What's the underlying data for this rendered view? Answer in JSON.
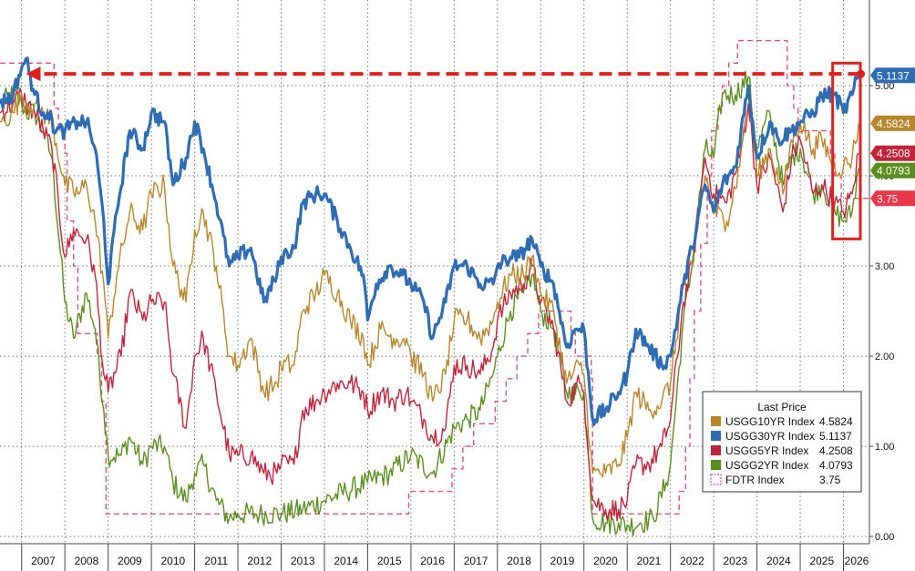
{
  "chart_data": {
    "type": "line",
    "title": "",
    "xlabel": "",
    "ylabel": "",
    "xlim": [
      2006.5,
      2026.6
    ],
    "ylim": [
      -0.08,
      5.95
    ],
    "grid": true,
    "y_axis_side": "right",
    "x_ticks": [
      "2007",
      "2008",
      "2009",
      "2010",
      "2011",
      "2012",
      "2013",
      "2014",
      "2015",
      "2016",
      "2017",
      "2018",
      "2019",
      "2020",
      "2021",
      "2022",
      "2023",
      "2024",
      "2025",
      "2026"
    ],
    "y_ticks": [
      "0.00",
      "1.00",
      "2.00",
      "3.00",
      "4.00",
      "5.00"
    ],
    "legend": {
      "title": "Last Price",
      "placement": "bottom-right",
      "entries": [
        {
          "name": "USGG10YR Index",
          "value": "4.5824"
        },
        {
          "name": "USGG30YR Index",
          "value": "5.1137"
        },
        {
          "name": "USGG5YR Index",
          "value": "4.2508"
        },
        {
          "name": "USGG2YR Index",
          "value": "4.0793"
        },
        {
          "name": "FDTR Index",
          "value": "3.75"
        }
      ]
    },
    "last_price_badges": [
      {
        "label": "5.1137",
        "value": 5.1137,
        "color": "#2e6db4"
      },
      {
        "label": "4.5824",
        "value": 4.5824,
        "color": "#b8862b"
      },
      {
        "label": "4.2508",
        "value": 4.2508,
        "color": "#c0243a"
      },
      {
        "label": "4.0793",
        "value": 4.0793,
        "color": "#5a8f1f"
      },
      {
        "label": "3.75",
        "value": 3.75,
        "color": "#e8364a"
      }
    ],
    "annotation": {
      "type": "dashed-arrow",
      "color": "#e0201e",
      "from": {
        "x": 2026.4,
        "y": 5.13
      },
      "to": {
        "x": 2007.1,
        "y": 5.13
      },
      "highlight_box": {
        "x0": 2025.75,
        "x1": 2026.65,
        "y0": 3.3,
        "y1": 5.25
      }
    },
    "series": [
      {
        "name": "USGG30YR Index",
        "color": "#2e6db4",
        "width": 3.2,
        "style": "line",
        "x": [
          2006.5,
          2006.8,
          2007.0,
          2007.1,
          2007.3,
          2007.5,
          2007.6,
          2007.8,
          2008.0,
          2008.3,
          2008.5,
          2008.7,
          2008.9,
          2009.0,
          2009.2,
          2009.5,
          2009.8,
          2010.0,
          2010.3,
          2010.5,
          2010.8,
          2011.0,
          2011.2,
          2011.5,
          2011.8,
          2012.0,
          2012.3,
          2012.6,
          2012.9,
          2013.0,
          2013.3,
          2013.5,
          2013.8,
          2014.0,
          2014.3,
          2014.6,
          2014.9,
          2015.0,
          2015.2,
          2015.5,
          2015.8,
          2016.0,
          2016.3,
          2016.5,
          2016.8,
          2017.0,
          2017.3,
          2017.6,
          2017.9,
          2018.0,
          2018.3,
          2018.5,
          2018.8,
          2019.0,
          2019.3,
          2019.6,
          2019.8,
          2020.0,
          2020.2,
          2020.5,
          2020.8,
          2021.0,
          2021.2,
          2021.5,
          2021.8,
          2022.0,
          2022.3,
          2022.5,
          2022.8,
          2023.0,
          2023.2,
          2023.5,
          2023.8,
          2024.0,
          2024.3,
          2024.5,
          2024.8,
          2025.0,
          2025.3,
          2025.5,
          2025.8,
          2026.0,
          2026.2,
          2026.35
        ],
        "y": [
          4.8,
          4.9,
          5.2,
          5.3,
          4.9,
          4.7,
          4.7,
          4.5,
          4.5,
          4.6,
          4.6,
          4.3,
          3.5,
          2.8,
          3.6,
          4.5,
          4.3,
          4.7,
          4.6,
          3.9,
          4.2,
          4.6,
          4.3,
          3.7,
          3.0,
          3.1,
          3.2,
          2.6,
          2.9,
          3.1,
          3.2,
          3.7,
          3.8,
          3.8,
          3.5,
          3.2,
          2.9,
          2.4,
          2.8,
          3.0,
          2.9,
          2.8,
          2.6,
          2.2,
          2.6,
          3.0,
          3.0,
          2.8,
          2.8,
          3.0,
          3.1,
          3.1,
          3.3,
          3.0,
          2.8,
          2.1,
          2.3,
          2.3,
          1.3,
          1.4,
          1.6,
          1.8,
          2.3,
          2.1,
          1.9,
          2.0,
          2.8,
          3.2,
          3.9,
          3.6,
          3.9,
          4.1,
          5.0,
          4.2,
          4.6,
          4.4,
          4.5,
          4.6,
          4.7,
          4.9,
          4.9,
          4.7,
          4.9,
          5.11
        ]
      },
      {
        "name": "USGG10YR Index",
        "color": "#b8862b",
        "width": 1.4,
        "style": "line",
        "x": [
          2006.5,
          2006.8,
          2007.0,
          2007.1,
          2007.3,
          2007.5,
          2007.7,
          2008.0,
          2008.3,
          2008.5,
          2008.7,
          2008.9,
          2009.0,
          2009.2,
          2009.5,
          2009.8,
          2010.0,
          2010.3,
          2010.5,
          2010.8,
          2011.0,
          2011.2,
          2011.5,
          2011.8,
          2012.0,
          2012.3,
          2012.6,
          2012.9,
          2013.0,
          2013.3,
          2013.5,
          2013.8,
          2014.0,
          2014.3,
          2014.6,
          2014.9,
          2015.0,
          2015.3,
          2015.6,
          2015.9,
          2016.0,
          2016.3,
          2016.5,
          2016.8,
          2017.0,
          2017.3,
          2017.6,
          2017.9,
          2018.0,
          2018.3,
          2018.6,
          2018.8,
          2019.0,
          2019.3,
          2019.6,
          2019.9,
          2020.0,
          2020.2,
          2020.5,
          2020.8,
          2021.0,
          2021.2,
          2021.5,
          2021.8,
          2022.0,
          2022.3,
          2022.5,
          2022.8,
          2023.0,
          2023.3,
          2023.6,
          2023.8,
          2024.0,
          2024.3,
          2024.6,
          2024.8,
          2025.0,
          2025.3,
          2025.5,
          2025.8,
          2026.0,
          2026.2,
          2026.35
        ],
        "y": [
          4.6,
          4.7,
          4.9,
          4.8,
          4.8,
          4.7,
          4.6,
          3.9,
          3.8,
          3.9,
          3.5,
          2.8,
          2.2,
          2.9,
          3.6,
          3.4,
          3.8,
          3.9,
          3.0,
          2.6,
          3.4,
          3.6,
          3.0,
          2.0,
          1.9,
          2.2,
          1.6,
          1.7,
          1.9,
          1.9,
          2.5,
          2.7,
          2.9,
          2.7,
          2.4,
          2.2,
          1.9,
          2.3,
          2.2,
          2.2,
          2.0,
          1.8,
          1.5,
          1.8,
          2.4,
          2.4,
          2.2,
          2.4,
          2.6,
          2.9,
          2.9,
          3.1,
          2.7,
          2.5,
          1.7,
          1.9,
          1.8,
          0.7,
          0.7,
          0.8,
          1.1,
          1.6,
          1.4,
          1.5,
          1.7,
          2.8,
          3.0,
          4.0,
          3.6,
          3.5,
          4.1,
          5.0,
          4.0,
          4.3,
          3.8,
          4.4,
          4.6,
          4.3,
          4.4,
          4.1,
          4.1,
          4.2,
          4.58
        ]
      },
      {
        "name": "USGG5YR Index",
        "color": "#c0243a",
        "width": 1.4,
        "style": "line",
        "x": [
          2006.5,
          2006.8,
          2007.0,
          2007.1,
          2007.3,
          2007.5,
          2007.7,
          2008.0,
          2008.2,
          2008.5,
          2008.7,
          2008.9,
          2009.0,
          2009.3,
          2009.5,
          2009.8,
          2010.0,
          2010.3,
          2010.5,
          2010.8,
          2011.0,
          2011.2,
          2011.5,
          2011.8,
          2012.0,
          2012.3,
          2012.6,
          2012.9,
          2013.0,
          2013.3,
          2013.5,
          2013.8,
          2014.0,
          2014.3,
          2014.6,
          2014.9,
          2015.0,
          2015.3,
          2015.6,
          2015.9,
          2016.0,
          2016.3,
          2016.5,
          2016.8,
          2017.0,
          2017.3,
          2017.6,
          2017.9,
          2018.0,
          2018.3,
          2018.6,
          2018.8,
          2019.0,
          2019.3,
          2019.6,
          2019.9,
          2020.0,
          2020.2,
          2020.5,
          2020.8,
          2021.0,
          2021.2,
          2021.5,
          2021.8,
          2022.0,
          2022.3,
          2022.5,
          2022.8,
          2023.0,
          2023.3,
          2023.6,
          2023.8,
          2024.0,
          2024.3,
          2024.6,
          2024.8,
          2025.0,
          2025.3,
          2025.5,
          2025.8,
          2026.0,
          2026.2,
          2026.35
        ],
        "y": [
          4.7,
          4.8,
          4.9,
          4.8,
          4.7,
          4.5,
          4.3,
          3.1,
          3.4,
          3.3,
          2.9,
          1.8,
          1.6,
          2.0,
          2.7,
          2.4,
          2.6,
          2.6,
          1.8,
          1.2,
          2.0,
          2.2,
          1.6,
          0.9,
          0.9,
          0.9,
          0.7,
          0.7,
          0.8,
          0.8,
          1.4,
          1.5,
          1.6,
          1.7,
          1.7,
          1.6,
          1.4,
          1.6,
          1.5,
          1.6,
          1.5,
          1.3,
          1.1,
          1.2,
          1.9,
          1.9,
          1.8,
          2.1,
          2.4,
          2.7,
          2.8,
          3.0,
          2.6,
          2.3,
          1.5,
          1.7,
          1.6,
          0.4,
          0.3,
          0.3,
          0.4,
          0.8,
          0.8,
          1.0,
          1.3,
          2.6,
          3.0,
          4.2,
          3.8,
          3.7,
          4.2,
          4.8,
          3.9,
          4.2,
          3.6,
          4.2,
          4.4,
          3.8,
          3.9,
          3.7,
          3.6,
          3.8,
          4.25
        ]
      },
      {
        "name": "USGG2YR Index",
        "color": "#5a8f1f",
        "width": 1.4,
        "style": "line",
        "x": [
          2006.5,
          2006.8,
          2007.0,
          2007.1,
          2007.3,
          2007.5,
          2007.7,
          2008.0,
          2008.2,
          2008.5,
          2008.7,
          2008.9,
          2009.0,
          2009.3,
          2009.5,
          2009.8,
          2010.0,
          2010.3,
          2010.5,
          2010.8,
          2011.0,
          2011.2,
          2011.5,
          2011.8,
          2012.0,
          2012.5,
          2013.0,
          2013.5,
          2014.0,
          2014.5,
          2015.0,
          2015.5,
          2016.0,
          2016.5,
          2017.0,
          2017.3,
          2017.6,
          2017.9,
          2018.0,
          2018.3,
          2018.6,
          2018.8,
          2019.0,
          2019.3,
          2019.6,
          2019.9,
          2020.0,
          2020.2,
          2020.5,
          2020.8,
          2021.0,
          2021.3,
          2021.6,
          2021.9,
          2022.0,
          2022.3,
          2022.5,
          2022.8,
          2023.0,
          2023.2,
          2023.5,
          2023.8,
          2024.0,
          2024.3,
          2024.6,
          2024.8,
          2025.0,
          2025.3,
          2025.5,
          2025.8,
          2026.0,
          2026.2,
          2026.35
        ],
        "y": [
          4.8,
          4.9,
          4.8,
          4.7,
          4.7,
          4.5,
          4.2,
          2.6,
          2.2,
          2.7,
          2.3,
          1.4,
          0.9,
          0.9,
          1.1,
          0.8,
          1.0,
          1.0,
          0.6,
          0.4,
          0.7,
          0.8,
          0.4,
          0.2,
          0.25,
          0.25,
          0.25,
          0.3,
          0.4,
          0.5,
          0.6,
          0.7,
          0.9,
          0.7,
          1.2,
          1.3,
          1.4,
          1.8,
          2.0,
          2.5,
          2.7,
          2.9,
          2.5,
          2.3,
          1.6,
          1.6,
          1.6,
          0.2,
          0.15,
          0.15,
          0.12,
          0.15,
          0.2,
          0.6,
          0.8,
          2.4,
          3.0,
          4.3,
          4.2,
          4.9,
          4.9,
          5.1,
          4.3,
          4.7,
          3.9,
          4.2,
          4.3,
          3.8,
          3.9,
          3.6,
          3.5,
          3.6,
          4.08
        ]
      },
      {
        "name": "FDTR Index",
        "color": "#d8527a",
        "width": 1.4,
        "style": "step",
        "x": [
          2006.5,
          2007.6,
          2007.75,
          2007.85,
          2008.0,
          2008.05,
          2008.2,
          2008.3,
          2008.75,
          2008.85,
          2008.95,
          2015.95,
          2016.95,
          2017.2,
          2017.45,
          2017.95,
          2018.2,
          2018.45,
          2018.7,
          2018.95,
          2019.55,
          2019.7,
          2019.8,
          2020.17,
          2020.2,
          2022.2,
          2022.35,
          2022.45,
          2022.55,
          2022.7,
          2022.85,
          2022.95,
          2023.1,
          2023.2,
          2023.35,
          2023.55,
          2024.7,
          2024.85,
          2024.95,
          2025.7,
          2025.8,
          2025.95,
          2026.6
        ],
        "y": [
          5.25,
          5.25,
          4.75,
          4.5,
          4.25,
          3.5,
          3.0,
          2.25,
          2.0,
          1.5,
          0.25,
          0.5,
          0.75,
          1.0,
          1.25,
          1.5,
          1.75,
          2.0,
          2.25,
          2.5,
          2.5,
          2.25,
          2.0,
          1.75,
          0.25,
          0.5,
          1.0,
          1.75,
          2.5,
          3.25,
          4.0,
          4.5,
          4.75,
          5.0,
          5.25,
          5.5,
          5.0,
          4.75,
          4.5,
          4.25,
          4.0,
          3.75,
          3.75
        ]
      }
    ]
  }
}
